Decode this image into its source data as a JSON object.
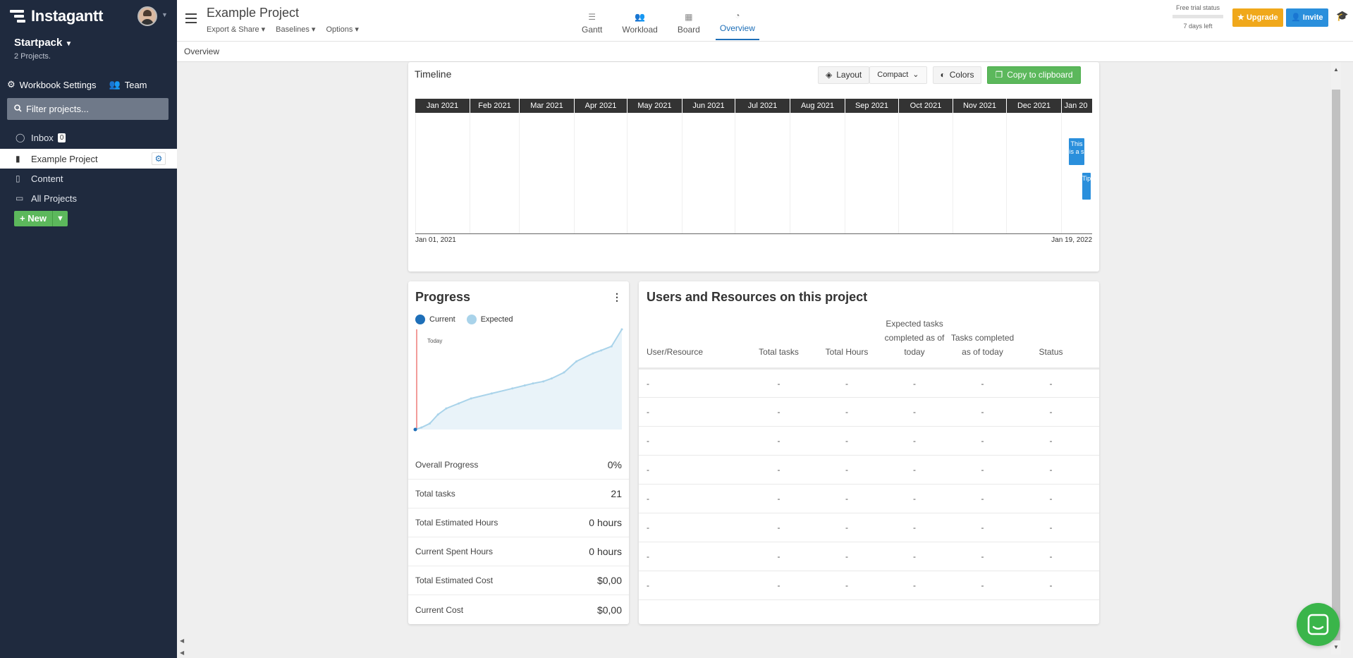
{
  "sidebar": {
    "brand": "Instagantt",
    "workspace_name": "Startpack",
    "workspace_sub": "2 Projects.",
    "workbook_settings": "Workbook Settings",
    "team": "Team",
    "filter_placeholder": "Filter projects...",
    "items": [
      {
        "label": "Inbox",
        "badge": "0",
        "icon": "chat-bubble-icon"
      },
      {
        "label": "Example Project",
        "icon": "file-icon",
        "active": true
      },
      {
        "label": "Content",
        "icon": "file-icon"
      },
      {
        "label": "All Projects",
        "icon": "folder-icon"
      }
    ],
    "new_label": "New"
  },
  "topbar": {
    "project_title": "Example Project",
    "menus": [
      "Export & Share",
      "Baselines",
      "Options"
    ],
    "views": [
      {
        "label": "Gantt",
        "icon": "gantt-icon"
      },
      {
        "label": "Workload",
        "icon": "users-icon"
      },
      {
        "label": "Board",
        "icon": "board-icon"
      },
      {
        "label": "Overview",
        "icon": "dashboard-icon",
        "active": true
      }
    ],
    "trial_label": "Free trial status",
    "trial_days": "7 days left",
    "upgrade": "Upgrade",
    "invite": "Invite"
  },
  "breadcrumb": "Overview",
  "timeline": {
    "title": "Timeline",
    "layout_label": "Layout",
    "layout_value": "Compact",
    "colors_label": "Colors",
    "copy_label": "Copy to clipboard",
    "months": [
      "Jan 2021",
      "Feb 2021",
      "Mar 2021",
      "Apr 2021",
      "May 2021",
      "Jun 2021",
      "Jul 2021",
      "Aug 2021",
      "Sep 2021",
      "Oct 2021",
      "Nov 2021",
      "Dec 2021",
      "Jan 20"
    ],
    "tasks": [
      "This is a s",
      "Tip"
    ],
    "start_date": "Jan 01, 2021",
    "end_date": "Jan 19, 2022"
  },
  "progress": {
    "title": "Progress",
    "legend_current": "Current",
    "legend_expected": "Expected",
    "today_label": "Today",
    "colors": {
      "current": "#1e6fb8",
      "expected": "#a9d3ea",
      "today": "#e53935"
    },
    "chart_data": {
      "type": "line",
      "series": [
        {
          "name": "Expected",
          "x": [
            0,
            0.03,
            0.07,
            0.11,
            0.15,
            0.21,
            0.27,
            0.37,
            0.47,
            0.53,
            0.57,
            0.62,
            0.66,
            0.72,
            0.78,
            0.86,
            0.9,
            0.95,
            1.0
          ],
          "y": [
            0,
            0.02,
            0.06,
            0.15,
            0.21,
            0.26,
            0.31,
            0.36,
            0.41,
            0.44,
            0.46,
            0.48,
            0.51,
            0.57,
            0.68,
            0.76,
            0.79,
            0.83,
            1.0
          ]
        },
        {
          "name": "Current",
          "x": [
            0
          ],
          "y": [
            0
          ]
        }
      ],
      "ylim": [
        0,
        1
      ]
    },
    "rows": [
      {
        "label": "Overall Progress",
        "value": "0%"
      },
      {
        "label": "Total tasks",
        "value": "21"
      },
      {
        "label": "Total Estimated Hours",
        "value": "0 hours"
      },
      {
        "label": "Current Spent Hours",
        "value": "0 hours"
      },
      {
        "label": "Total Estimated Cost",
        "value": "$0,00"
      },
      {
        "label": "Current Cost",
        "value": "$0,00"
      }
    ]
  },
  "users": {
    "title": "Users and Resources on this project",
    "headers": [
      "User/Resource",
      "Total tasks",
      "Total Hours",
      "Expected tasks completed as of today",
      "Tasks completed as of today",
      "Status"
    ],
    "rows": [
      [
        "-",
        "-",
        "-",
        "-",
        "-",
        "-"
      ],
      [
        "-",
        "-",
        "-",
        "-",
        "-",
        "-"
      ],
      [
        "-",
        "-",
        "-",
        "-",
        "-",
        "-"
      ],
      [
        "-",
        "-",
        "-",
        "-",
        "-",
        "-"
      ],
      [
        "-",
        "-",
        "-",
        "-",
        "-",
        "-"
      ],
      [
        "-",
        "-",
        "-",
        "-",
        "-",
        "-"
      ],
      [
        "-",
        "-",
        "-",
        "-",
        "-",
        "-"
      ],
      [
        "-",
        "-",
        "-",
        "-",
        "-",
        "-"
      ]
    ]
  }
}
